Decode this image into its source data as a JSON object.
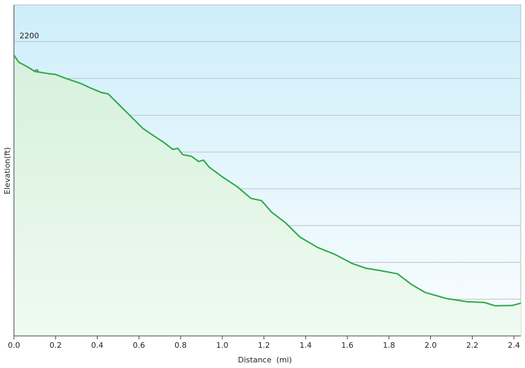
{
  "chart_data": {
    "type": "line",
    "x_label": "Distance  (mi)",
    "y_label": "Elevation(ft)",
    "x": [
      0,
      0.023,
      0.067,
      0.1,
      0.167,
      0.2,
      0.25,
      0.318,
      0.368,
      0.418,
      0.452,
      0.502,
      0.552,
      0.619,
      0.669,
      0.72,
      0.763,
      0.787,
      0.81,
      0.853,
      0.887,
      0.91,
      0.937,
      1.004,
      1.071,
      1.138,
      1.188,
      1.238,
      1.305,
      1.372,
      1.456,
      1.539,
      1.623,
      1.69,
      1.757,
      1.841,
      1.908,
      1.975,
      2.075,
      2.176,
      2.259,
      2.309,
      2.393,
      2.433
    ],
    "values": [
      2163,
      2144,
      2131,
      2119,
      2113,
      2111,
      2100,
      2087,
      2074,
      2062,
      2058,
      2030,
      2002,
      1964,
      1945,
      1926,
      1907,
      1910,
      1893,
      1888,
      1874,
      1878,
      1859,
      1831,
      1806,
      1774,
      1768,
      1736,
      1707,
      1669,
      1641,
      1622,
      1597,
      1584,
      1578,
      1569,
      1540,
      1518,
      1502,
      1493,
      1491,
      1482,
      1483,
      1489
    ],
    "color": "#2aa845",
    "xlim": [
      0,
      2.433
    ],
    "ylim": [
      1400,
      2300
    ],
    "xticks": [
      {
        "value": 0,
        "label": "0.0"
      },
      0.2,
      0.4,
      0.6,
      0.8,
      {
        "value": 1,
        "label": "1.0"
      },
      1.2,
      1.4,
      1.6,
      1.8,
      {
        "value": 2,
        "label": "2.0"
      },
      2.2,
      2.4
    ],
    "yticks": [
      1500,
      1600,
      1700,
      1800,
      1900,
      2000,
      2100,
      2200
    ],
    "grid": true
  }
}
